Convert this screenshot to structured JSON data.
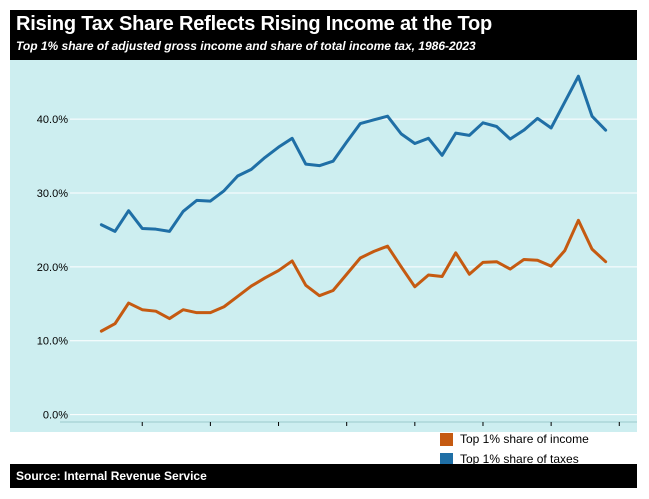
{
  "header": {
    "title": "Rising Tax Share Reflects Rising Income at the Top",
    "subtitle": "Top 1% share of adjusted gross income and share of total income tax, 1986-2023"
  },
  "footer": {
    "source": "Source: Internal Revenue Service"
  },
  "colors": {
    "income": "#c55a11",
    "taxes": "#1f6fa6",
    "background": "#cdeef0"
  },
  "chart_data": {
    "type": "line",
    "title": "Rising Tax Share Reflects Rising Income at the Top",
    "subtitle": "Top 1% share of adjusted gross income and share of total income tax, 1986-2023",
    "xlabel": "",
    "ylabel": "",
    "x": [
      1986,
      1987,
      1988,
      1989,
      1990,
      1991,
      1992,
      1993,
      1994,
      1995,
      1996,
      1997,
      1998,
      1999,
      2000,
      2001,
      2002,
      2003,
      2004,
      2005,
      2006,
      2007,
      2008,
      2009,
      2010,
      2011,
      2012,
      2013,
      2014,
      2015,
      2016,
      2017,
      2018,
      2019,
      2020,
      2021,
      2022,
      2023
    ],
    "xlim": [
      1983.7,
      2025.3
    ],
    "ylim": [
      -1,
      48
    ],
    "x_ticks": [
      "1989",
      "1994",
      "1999",
      "2004",
      "2009",
      "2014",
      "2019",
      "2024"
    ],
    "y_ticks": [
      {
        "value": 0,
        "label": "0.0%"
      },
      {
        "value": 10,
        "label": "10.0%"
      },
      {
        "value": 20,
        "label": "20.0%"
      },
      {
        "value": 30,
        "label": "30.0%"
      },
      {
        "value": 40,
        "label": "40.0%"
      }
    ],
    "grid": true,
    "legend_position": "bottom-right",
    "series": [
      {
        "name": "Top 1% share of income",
        "color": "#c55a11",
        "values": [
          11.3,
          12.3,
          15.1,
          14.2,
          14.0,
          13.0,
          14.2,
          13.8,
          13.8,
          14.6,
          16.0,
          17.4,
          18.5,
          19.5,
          20.8,
          17.5,
          16.1,
          16.8,
          19.0,
          21.2,
          22.1,
          22.8,
          20.0,
          17.3,
          18.9,
          18.7,
          21.9,
          19.0,
          20.6,
          20.7,
          19.7,
          21.0,
          20.9,
          20.1,
          22.2,
          26.3,
          22.4,
          20.7
        ]
      },
      {
        "name": "Top 1% share of taxes",
        "color": "#1f6fa6",
        "values": [
          25.7,
          24.8,
          27.6,
          25.2,
          25.1,
          24.8,
          27.5,
          29.0,
          28.9,
          30.3,
          32.3,
          33.2,
          34.8,
          36.2,
          37.4,
          33.9,
          33.7,
          34.3,
          36.9,
          39.4,
          39.9,
          40.4,
          38.0,
          36.7,
          37.4,
          35.1,
          38.1,
          37.8,
          39.5,
          39.0,
          37.3,
          38.5,
          40.1,
          38.8,
          42.3,
          45.8,
          40.4,
          38.5
        ]
      }
    ]
  }
}
